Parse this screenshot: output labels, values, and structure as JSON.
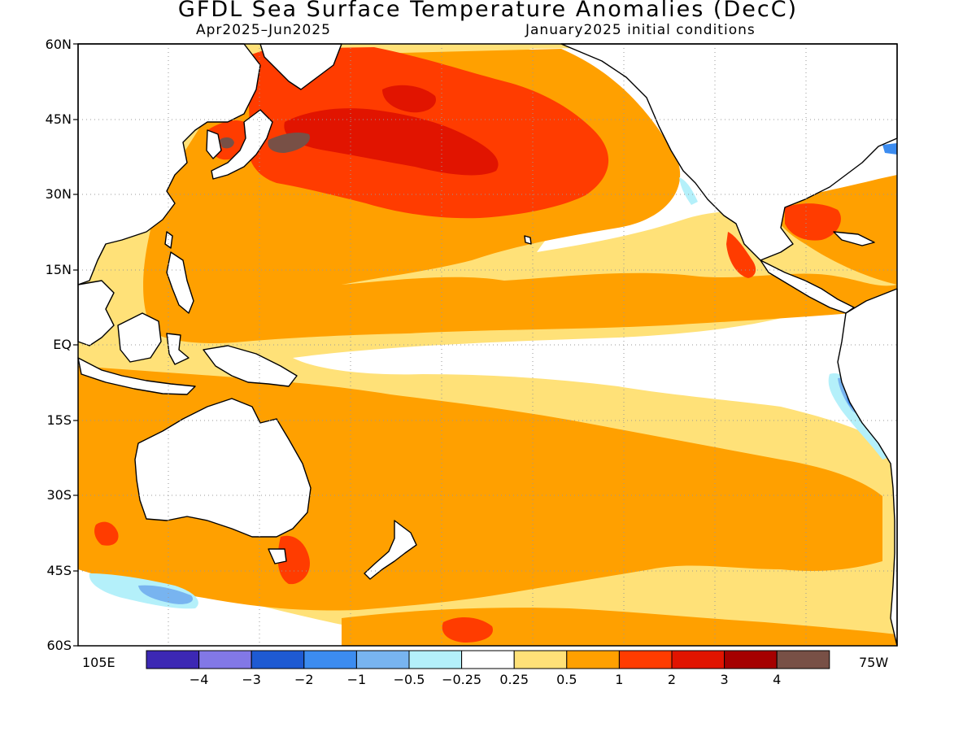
{
  "title": "GFDL Sea Surface Temperature Anomalies (DecC)",
  "subtitle_left": "Apr2025–Jun2025",
  "subtitle_right": "January2025 initial conditions",
  "lat_labels": [
    "60N",
    "45N",
    "30N",
    "15N",
    "EQ",
    "15S",
    "30S",
    "45S",
    "60S"
  ],
  "lon_labels": {
    "west_end": "105E",
    "east_end": "75W"
  },
  "colorbar": {
    "colors": [
      "#3c28b4",
      "#8278e6",
      "#1e5ad2",
      "#3c8cf0",
      "#78b4f0",
      "#b4f0fa",
      "#ffffff",
      "#ffe178",
      "#ffa000",
      "#ff3c00",
      "#e11400",
      "#a50000",
      "#785046"
    ],
    "tick_labels": [
      "−4",
      "−3",
      "−2",
      "−1",
      "−0.5",
      "−0.25",
      "0.25",
      "0.5",
      "1",
      "2",
      "3",
      "4"
    ]
  },
  "palette": {
    "pos_025": "#ffe178",
    "pos_05": "#ffa000",
    "pos_1": "#ff3c00",
    "pos_2": "#e11400",
    "pos_3": "#a50000",
    "pos_4": "#785046",
    "neg_025": "#b4f0fa",
    "neg_05": "#78b4f0",
    "neg_1": "#3c8cf0",
    "land": "#ffffff"
  }
}
